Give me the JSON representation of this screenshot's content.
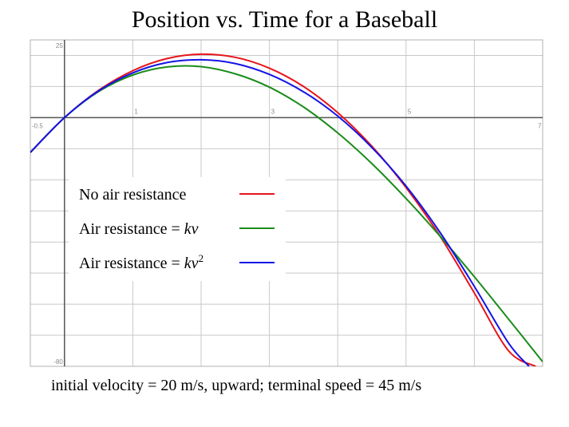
{
  "title": "Position vs. Time for a Baseball",
  "caption": "initial velocity = 20 m/s, upward; terminal speed = 45 m/s",
  "chart_data": {
    "type": "line",
    "title": "Position vs. Time for a Baseball",
    "xlabel": "",
    "ylabel": "",
    "xlim": [
      -0.5,
      7
    ],
    "ylim": [
      -80,
      25
    ],
    "grid": true,
    "x_tick_labels": [
      "-0.5",
      "1",
      "3",
      "5",
      "7"
    ],
    "x_tick_values": [
      -0.5,
      1,
      3,
      5,
      7
    ],
    "y_tick_labels": [
      "25",
      "-80"
    ],
    "y_tick_values": [
      25,
      -80
    ],
    "legend_position": "left-center",
    "series": [
      {
        "name": "No air resistance",
        "color": "#e8141a",
        "x": [
          -0.5,
          0,
          0.5,
          1,
          1.5,
          2,
          2.5,
          3,
          3.5,
          4,
          4.5,
          5,
          5.5,
          6,
          6.5,
          6.9
        ],
        "y": [
          -11.2,
          0,
          8.8,
          15.1,
          19.0,
          20.4,
          19.4,
          15.9,
          10.0,
          1.6,
          -9.2,
          -22.5,
          -38.2,
          -56.4,
          -75.0,
          -80
        ]
      },
      {
        "name": "Air resistance = kv",
        "color": "#1a8c1a",
        "x": [
          -0.5,
          0,
          0.5,
          1,
          1.5,
          2,
          2.5,
          3,
          3.5,
          4,
          4.5,
          5,
          5.5,
          6,
          6.5,
          7
        ],
        "y": [
          -11.2,
          0,
          8.4,
          13.7,
          16.3,
          16.4,
          14.1,
          9.8,
          3.4,
          -4.9,
          -14.8,
          -26.0,
          -38.2,
          -51.2,
          -64.8,
          -78.5
        ]
      },
      {
        "name": "Air resistance = kv²",
        "color": "#1414e6",
        "x": [
          -0.5,
          0,
          0.5,
          1,
          1.5,
          2,
          2.5,
          3,
          3.5,
          4,
          4.5,
          5,
          5.5,
          6,
          6.5,
          6.8
        ],
        "y": [
          -11.2,
          0,
          8.6,
          14.4,
          17.7,
          18.6,
          17.4,
          13.9,
          8.3,
          0.5,
          -9.6,
          -22.0,
          -37.0,
          -54.3,
          -72.5,
          -80
        ]
      }
    ],
    "legend": [
      {
        "label_main": "No air resistance",
        "label_italic": "",
        "label_sup": "",
        "color": "#e8141a"
      },
      {
        "label_main": "Air resistance = ",
        "label_italic": "kv",
        "label_sup": "",
        "color": "#1a8c1a"
      },
      {
        "label_main": "Air resistance = ",
        "label_italic": "kv",
        "label_sup": "2",
        "color": "#1414e6"
      }
    ]
  }
}
